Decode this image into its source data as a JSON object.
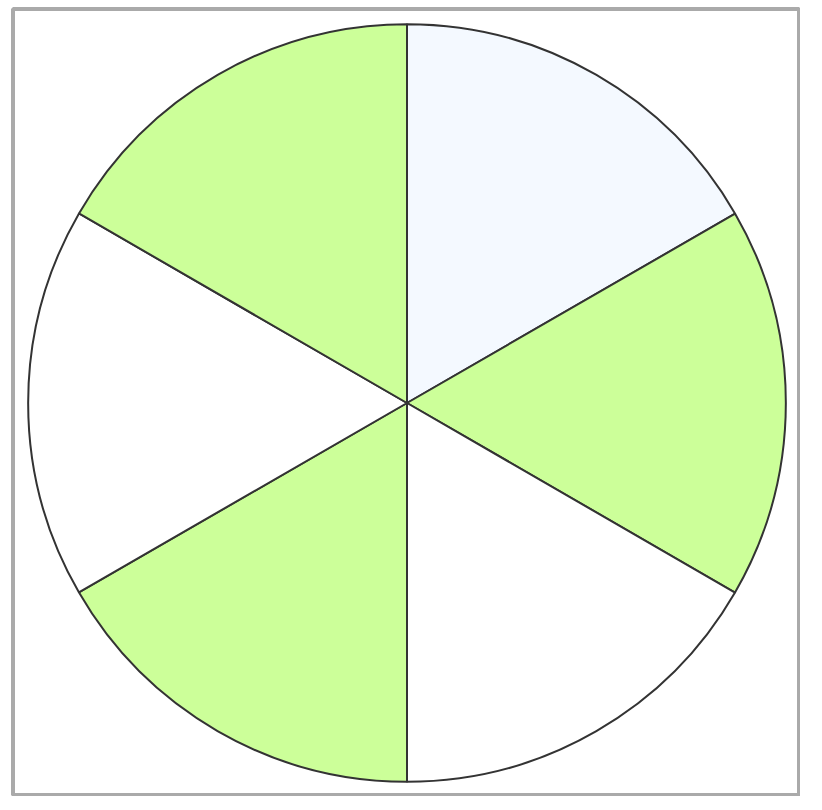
{
  "chart_data": {
    "type": "pie",
    "categories": [
      null,
      null,
      null,
      null,
      null,
      null
    ],
    "values": [
      16.67,
      16.67,
      16.66,
      16.67,
      16.67,
      16.66
    ],
    "colors": [
      "#f4f9ff",
      "#ccff99",
      "#ffffff",
      "#ccff99",
      "#ffffff",
      "#ccff99"
    ]
  }
}
